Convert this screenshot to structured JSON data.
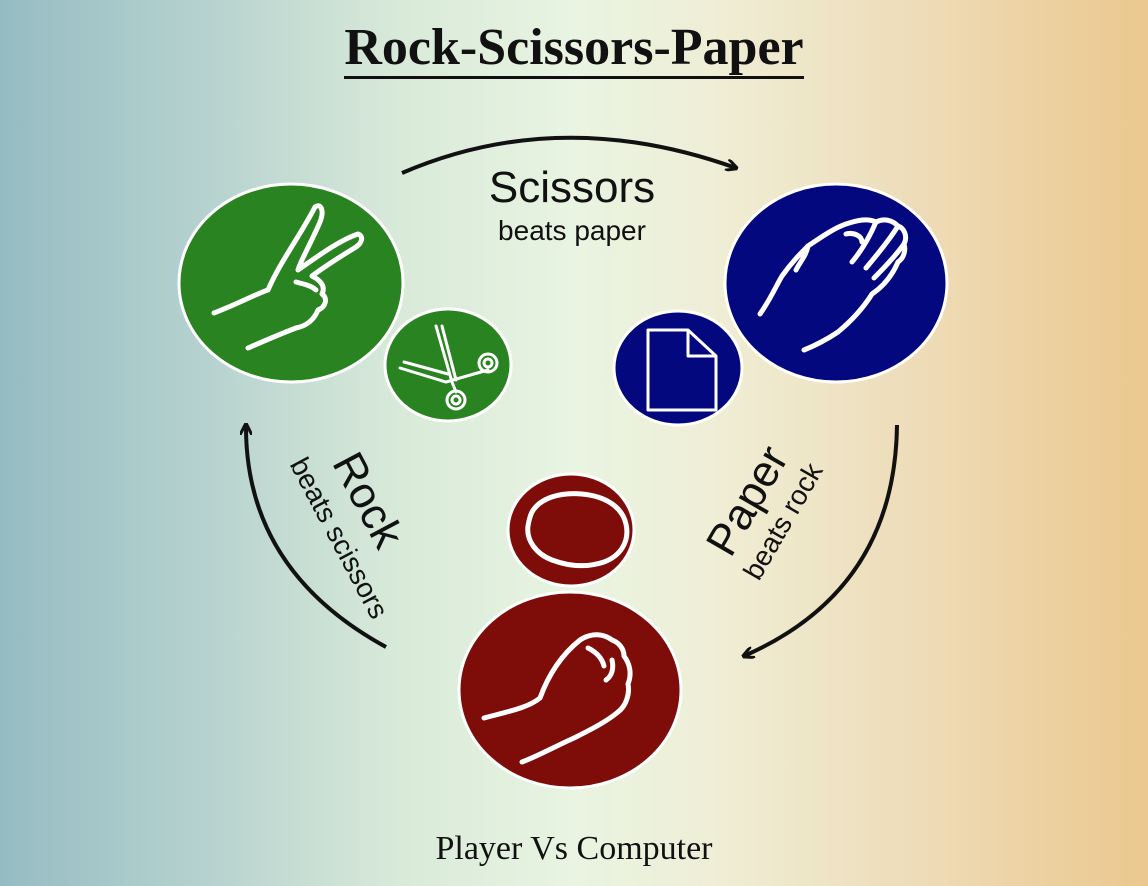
{
  "title": "Rock-Scissors-Paper",
  "footer": "Player Vs Computer",
  "colors": {
    "scissors": "#2a8321",
    "paper": "#04087f",
    "rock": "#7e0d09",
    "outline": "#ffffff",
    "arrow": "#111111"
  },
  "choices": {
    "scissors": {
      "name": "Scissors",
      "rule": "beats paper",
      "hand_icon": "peace-sign-hand-icon",
      "small_icon": "scissors-icon"
    },
    "paper": {
      "name": "Paper",
      "rule": "beats rock",
      "hand_icon": "open-hand-icon",
      "small_icon": "document-icon"
    },
    "rock": {
      "name": "Rock",
      "rule": "beats scissors",
      "hand_icon": "fist-icon",
      "small_icon": "rock-icon"
    }
  }
}
